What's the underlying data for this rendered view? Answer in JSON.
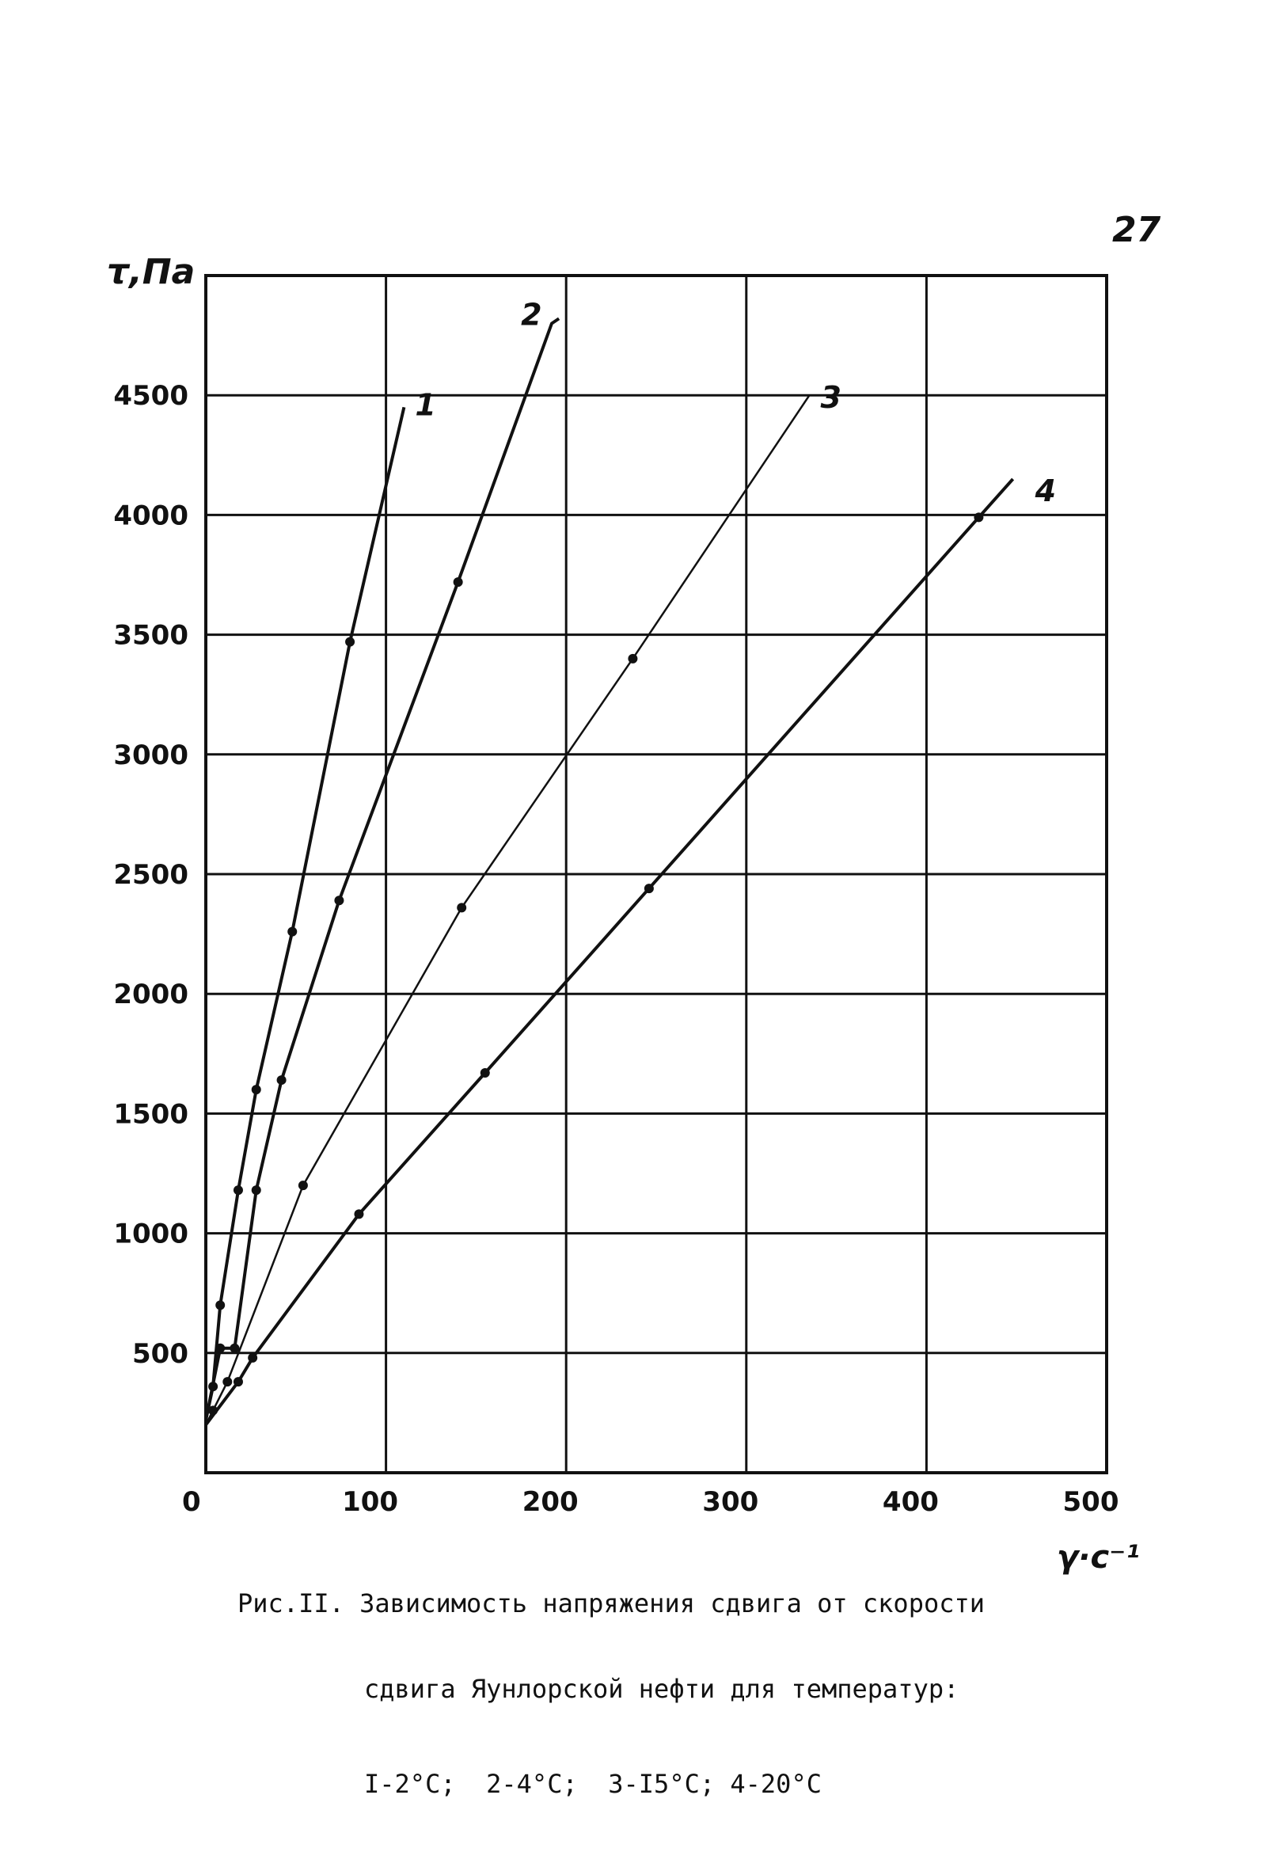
{
  "page_number": "27",
  "caption": {
    "line1": "Рис.II. Зависимость напряжения сдвига от скорости",
    "line2": "сдвига Яунлорской нефти для температур:",
    "line3": "I-2°С;  2-4°С;  3-I5°С; 4-20°С"
  },
  "chart_data": {
    "type": "line",
    "xlabel": "γ·с⁻¹",
    "ylabel": "τ,Па",
    "xlim": [
      0,
      500
    ],
    "ylim": [
      0,
      5000
    ],
    "x_ticks": [
      "0",
      "100",
      "200",
      "300",
      "400",
      "500"
    ],
    "y_ticks": [
      "500",
      "1000",
      "1500",
      "2000",
      "2500",
      "3000",
      "3500",
      "4000",
      "4500"
    ],
    "grid": true,
    "series": [
      {
        "name": "1",
        "x": [
          0,
          4,
          8,
          18,
          28,
          48,
          80,
          110
        ],
        "y": [
          220,
          360,
          700,
          1180,
          1600,
          2260,
          3470,
          4450
        ],
        "points_x": [
          4,
          8,
          18,
          28,
          48,
          80
        ],
        "points_y": [
          360,
          700,
          1180,
          1600,
          2260,
          3470
        ]
      },
      {
        "name": "2",
        "x": [
          0,
          8,
          16,
          28,
          42,
          74,
          140,
          192,
          196
        ],
        "y": [
          220,
          520,
          520,
          1180,
          1640,
          2390,
          3720,
          4800,
          4820
        ],
        "points_x": [
          8,
          16,
          28,
          42,
          74,
          140
        ],
        "points_y": [
          520,
          520,
          1180,
          1640,
          2390,
          3720
        ]
      },
      {
        "name": "3",
        "x": [
          0,
          4,
          12,
          54,
          142,
          237,
          335
        ],
        "y": [
          200,
          260,
          380,
          1200,
          2360,
          3400,
          4500
        ],
        "points_x": [
          4,
          12,
          54,
          142,
          237
        ],
        "points_y": [
          260,
          380,
          1200,
          2360,
          3400
        ]
      },
      {
        "name": "4",
        "x": [
          0,
          18,
          26,
          85,
          155,
          246,
          429,
          448
        ],
        "y": [
          200,
          380,
          480,
          1080,
          1670,
          2440,
          3990,
          4150
        ],
        "points_x": [
          18,
          26,
          85,
          155,
          246,
          429
        ],
        "points_y": [
          380,
          480,
          1080,
          1670,
          2440,
          3990
        ]
      }
    ]
  }
}
